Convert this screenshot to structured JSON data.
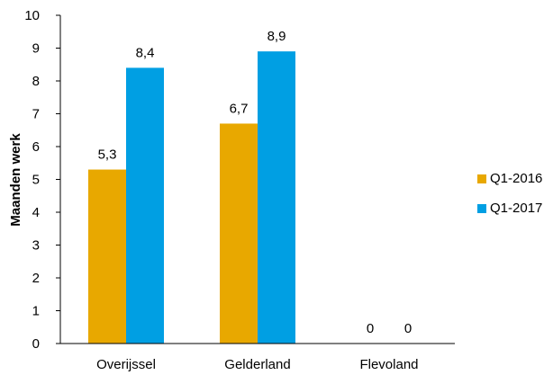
{
  "chart_data": {
    "type": "bar",
    "categories": [
      "Overijssel",
      "Gelderland",
      "Flevoland"
    ],
    "series": [
      {
        "name": "Q1-2016",
        "values": [
          5.3,
          6.7,
          0
        ],
        "labels": [
          "5,3",
          "6,7",
          "0"
        ],
        "color": "#E8A800"
      },
      {
        "name": "Q1-2017",
        "values": [
          8.4,
          8.9,
          0
        ],
        "labels": [
          "8,4",
          "8,9",
          "0"
        ],
        "color": "#009FE3"
      }
    ],
    "ylabel": "Maanden werk",
    "ylim": [
      0,
      10
    ],
    "yticks": [
      "0",
      "1",
      "2",
      "3",
      "4",
      "5",
      "6",
      "7",
      "8",
      "9",
      "10"
    ],
    "grid": false,
    "legend_position": "right"
  }
}
